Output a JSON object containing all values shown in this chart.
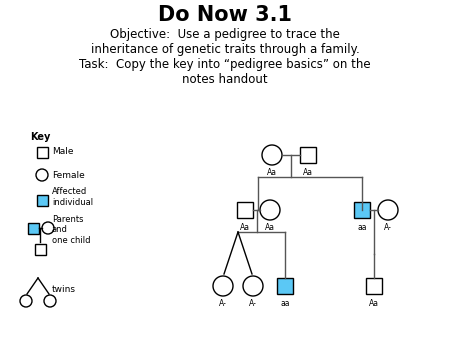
{
  "title": "Do Now 3.1",
  "subtitle": "Objective:  Use a pedigree to trace the\ninheritance of genetic traits through a family.\nTask:  Copy the key into “pedigree basics” on the\nnotes handout",
  "bg_color": "#ffffff",
  "blue": "#5bc8f5",
  "line_color": "#555555",
  "key_labels": [
    "Male",
    "Female",
    "Affected\nindividual",
    "Parents\nand\none child",
    "twins"
  ]
}
